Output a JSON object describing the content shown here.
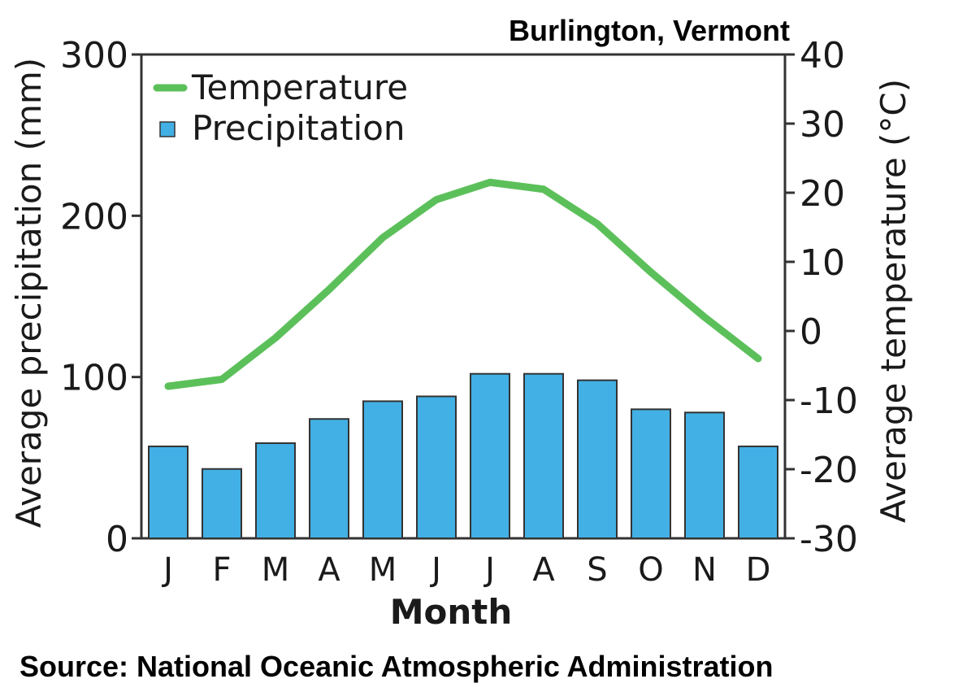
{
  "chart_data": {
    "type": "bar",
    "title": "Burlington, Vermont",
    "source": "Source: National Oceanic Atmospheric Administration",
    "xlabel": "Month",
    "ylabel_left": "Average precipitation (mm)",
    "ylabel_right": "Average temperature (°C)",
    "categories": [
      "J",
      "F",
      "M",
      "A",
      "M",
      "J",
      "J",
      "A",
      "S",
      "O",
      "N",
      "D"
    ],
    "series": [
      {
        "name": "Precipitation",
        "kind": "bar",
        "axis": "left",
        "color": "#42b0e4",
        "values": [
          57,
          43,
          59,
          74,
          85,
          88,
          102,
          102,
          98,
          80,
          78,
          57
        ]
      },
      {
        "name": "Temperature",
        "kind": "line",
        "axis": "right",
        "color": "#5cc05a",
        "values": [
          -8,
          -7,
          -1,
          6,
          13.5,
          19,
          21.5,
          20.5,
          15.5,
          8.5,
          2,
          -4
        ]
      }
    ],
    "ylim_left": [
      0,
      300
    ],
    "yticks_left": [
      "0",
      "100",
      "200",
      "300"
    ],
    "ylim_right": [
      -30,
      40
    ],
    "yticks_right": [
      "-30",
      "-20",
      "-10",
      "0",
      "10",
      "20",
      "30",
      "40"
    ],
    "legend": "top-left",
    "grid": false
  }
}
